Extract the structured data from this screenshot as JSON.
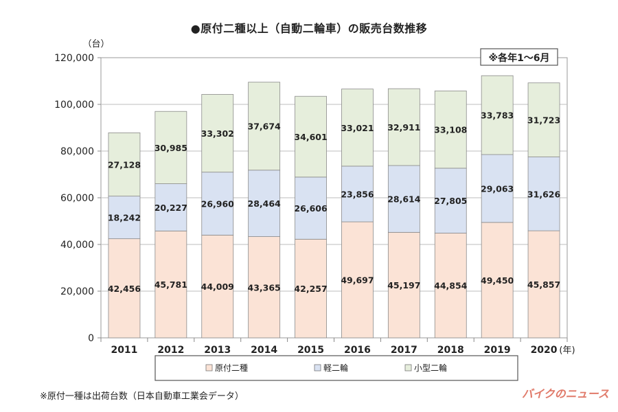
{
  "title": "●原付二種以上（自動二輪車）の販売台数推移",
  "footnote": "※原付一種は出荷台数（日本自動車工業会データ）",
  "brand": "バイクのニュース",
  "chart_data": {
    "type": "bar",
    "stacked": true,
    "y_unit_label": "（台）",
    "x_unit_label": "(年)",
    "period_note": "※各年1～6月",
    "categories": [
      "2011",
      "2012",
      "2013",
      "2014",
      "2015",
      "2016",
      "2017",
      "2018",
      "2019",
      "2020"
    ],
    "ylim": [
      0,
      120000
    ],
    "yticks": [
      0,
      20000,
      40000,
      60000,
      80000,
      100000,
      120000
    ],
    "ytick_labels": [
      "0",
      "20,000",
      "40,000",
      "60,000",
      "80,000",
      "100,000",
      "120,000"
    ],
    "grid": true,
    "legend_position": "bottom",
    "series": [
      {
        "name": "原付二種",
        "color": "#fbe3d6",
        "values": [
          42456,
          45781,
          44009,
          43365,
          42257,
          49697,
          45197,
          44854,
          49450,
          45857
        ],
        "labels": [
          "42,456",
          "45,781",
          "44,009",
          "43,365",
          "42,257",
          "49,697",
          "45,197",
          "44,854",
          "49,450",
          "45,857"
        ]
      },
      {
        "name": "軽二輪",
        "color": "#d9e2f2",
        "values": [
          18242,
          20227,
          26960,
          28464,
          26606,
          23856,
          28614,
          27805,
          29063,
          31626
        ],
        "labels": [
          "18,242",
          "20,227",
          "26,960",
          "28,464",
          "26,606",
          "23,856",
          "28,614",
          "27,805",
          "29,063",
          "31,626"
        ]
      },
      {
        "name": "小型二輪",
        "color": "#e6eedc",
        "values": [
          27128,
          30985,
          33302,
          37674,
          34601,
          33021,
          32911,
          33108,
          33783,
          31723
        ],
        "labels": [
          "27,128",
          "30,985",
          "33,302",
          "37,674",
          "34,601",
          "33,021",
          "32,911",
          "33,108",
          "33,783",
          "31,723"
        ]
      }
    ]
  }
}
